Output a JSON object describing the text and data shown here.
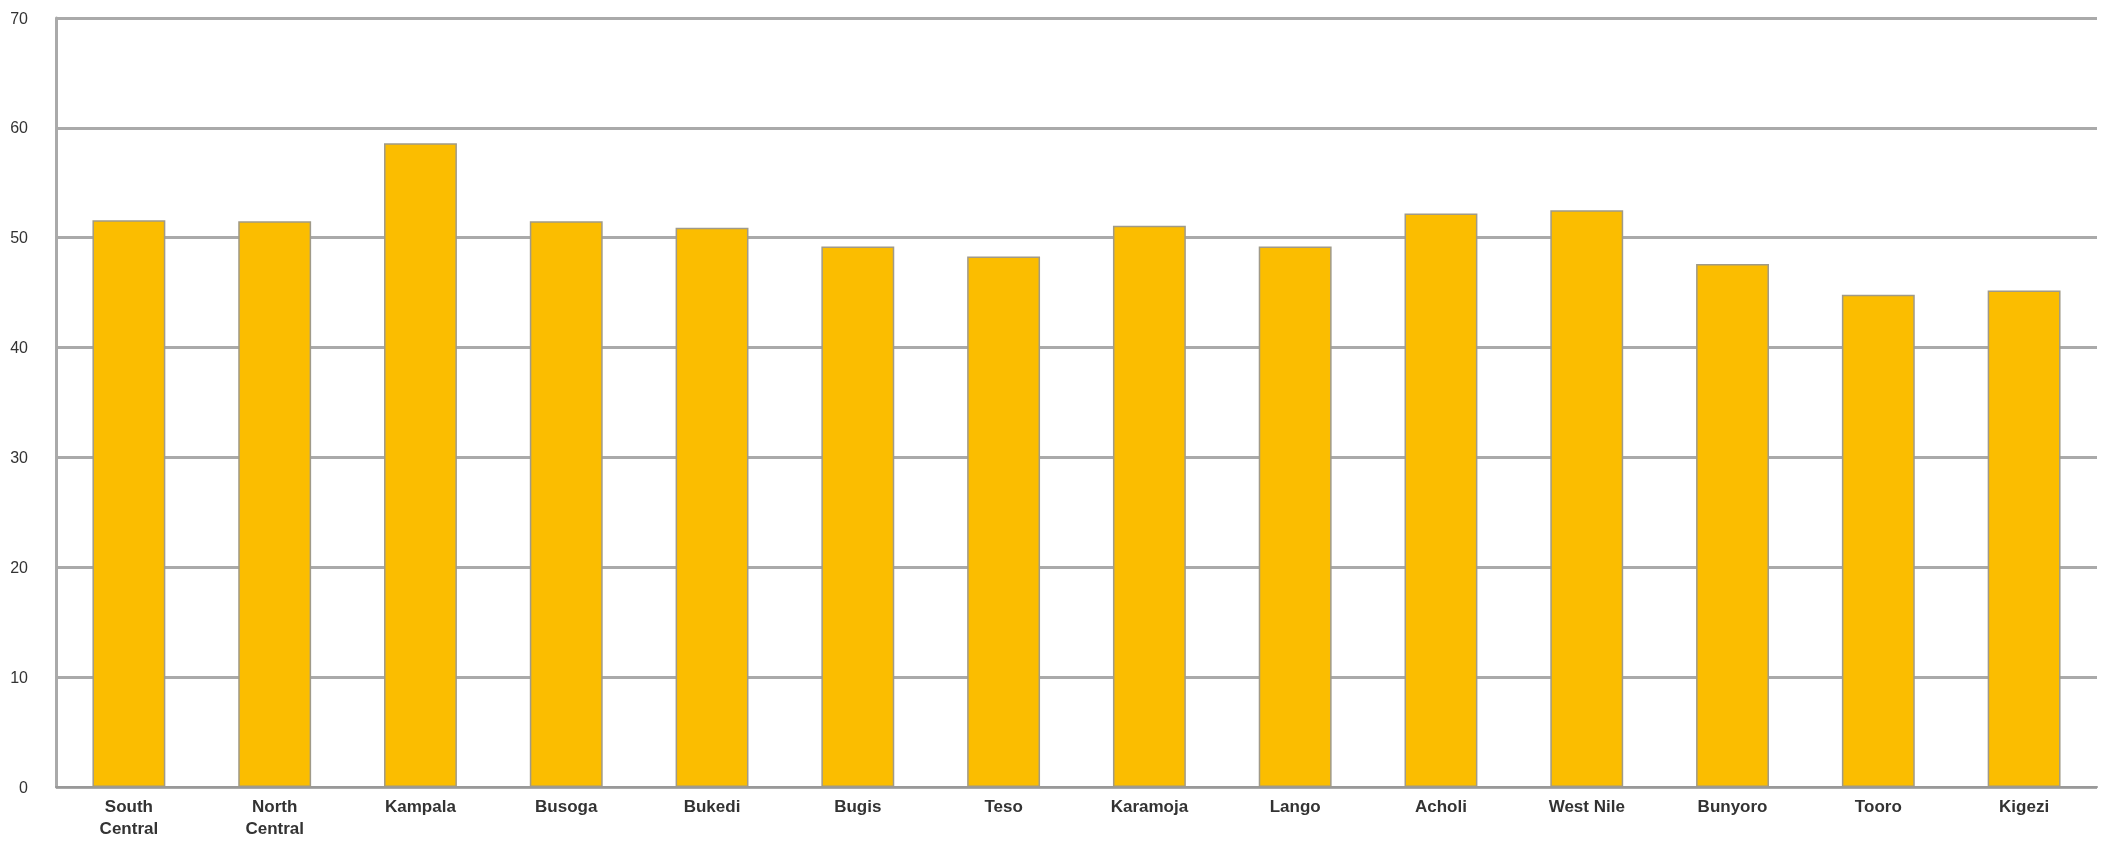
{
  "chart_data": {
    "type": "bar",
    "categories": [
      "South\nCentral",
      "North\nCentral",
      "Kampala",
      "Busoga",
      "Bukedi",
      "Bugis",
      "Teso",
      "Karamoja",
      "Lango",
      "Acholi",
      "West Nile",
      "Bunyoro",
      "Tooro",
      "Kigezi"
    ],
    "values": [
      51.6,
      51.5,
      58.6,
      51.5,
      50.9,
      49.2,
      48.3,
      51.1,
      49.2,
      52.2,
      52.5,
      47.6,
      44.8,
      45.2
    ],
    "color": "#fbbd00",
    "ylim": [
      0,
      70
    ],
    "yticks": [
      0,
      10,
      20,
      30,
      40,
      50,
      60,
      70
    ],
    "grid": "y"
  }
}
